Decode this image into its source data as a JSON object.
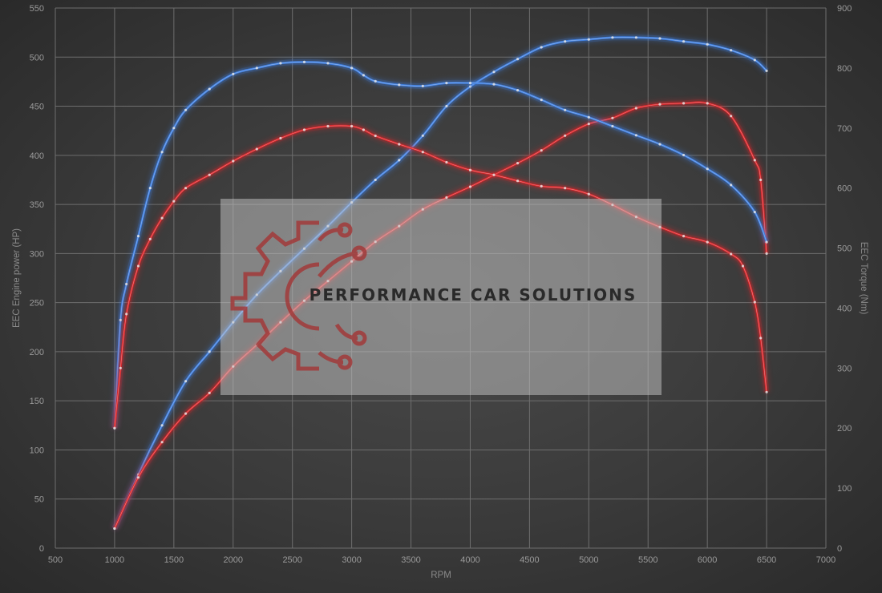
{
  "chart_data": {
    "type": "line",
    "xlabel": "RPM",
    "ylabel": "EEC Engine power (HP)",
    "y2label": "EEC Torque (Nm)",
    "xlim": [
      500,
      7000
    ],
    "ylim": [
      0,
      550
    ],
    "y2lim": [
      0,
      900
    ],
    "xticks": [
      "500",
      "1000",
      "1500",
      "2000",
      "2500",
      "3000",
      "3500",
      "4000",
      "4500",
      "5000",
      "5500",
      "6000",
      "6500",
      "7000"
    ],
    "yticks": [
      "0",
      "50",
      "100",
      "150",
      "200",
      "250",
      "300",
      "350",
      "400",
      "450",
      "500",
      "550"
    ],
    "y2ticks": [
      "0",
      "100",
      "200",
      "300",
      "400",
      "500",
      "600",
      "700",
      "800",
      "900"
    ],
    "grid": true,
    "series": [
      {
        "color": "#3f7fe0",
        "axis": "left",
        "points": [
          [
            1000,
            20
          ],
          [
            1200,
            75
          ],
          [
            1400,
            125
          ],
          [
            1600,
            170
          ],
          [
            1800,
            200
          ],
          [
            2000,
            230
          ],
          [
            2200,
            258
          ],
          [
            2400,
            282
          ],
          [
            2600,
            305
          ],
          [
            2800,
            328
          ],
          [
            3000,
            352
          ],
          [
            3200,
            375
          ],
          [
            3400,
            395
          ],
          [
            3600,
            420
          ],
          [
            3800,
            450
          ],
          [
            4000,
            470
          ],
          [
            4200,
            485
          ],
          [
            4400,
            498
          ],
          [
            4600,
            510
          ],
          [
            4800,
            516
          ],
          [
            5000,
            518
          ],
          [
            5200,
            520
          ],
          [
            5400,
            520
          ],
          [
            5600,
            519
          ],
          [
            5800,
            516
          ],
          [
            6000,
            513
          ],
          [
            6200,
            507
          ],
          [
            6400,
            497
          ],
          [
            6500,
            486
          ]
        ]
      },
      {
        "color": "#d8262a",
        "axis": "left",
        "points": [
          [
            1000,
            20
          ],
          [
            1200,
            72
          ],
          [
            1400,
            108
          ],
          [
            1600,
            137
          ],
          [
            1800,
            158
          ],
          [
            2000,
            185
          ],
          [
            2200,
            207
          ],
          [
            2400,
            230
          ],
          [
            2600,
            252
          ],
          [
            2800,
            272
          ],
          [
            3000,
            292
          ],
          [
            3200,
            312
          ],
          [
            3400,
            328
          ],
          [
            3600,
            345
          ],
          [
            3800,
            357
          ],
          [
            4000,
            368
          ],
          [
            4200,
            380
          ],
          [
            4400,
            392
          ],
          [
            4600,
            405
          ],
          [
            4800,
            420
          ],
          [
            5000,
            432
          ],
          [
            5200,
            438
          ],
          [
            5400,
            448
          ],
          [
            5600,
            452
          ],
          [
            5800,
            453
          ],
          [
            6000,
            453
          ],
          [
            6200,
            440
          ],
          [
            6400,
            395
          ],
          [
            6450,
            375
          ],
          [
            6500,
            300
          ]
        ]
      },
      {
        "color": "#3f7fe0",
        "axis": "right",
        "points": [
          [
            1000,
            200
          ],
          [
            1050,
            380
          ],
          [
            1100,
            440
          ],
          [
            1200,
            520
          ],
          [
            1300,
            600
          ],
          [
            1400,
            660
          ],
          [
            1500,
            700
          ],
          [
            1600,
            730
          ],
          [
            1800,
            765
          ],
          [
            2000,
            790
          ],
          [
            2200,
            800
          ],
          [
            2400,
            808
          ],
          [
            2600,
            810
          ],
          [
            2800,
            808
          ],
          [
            3000,
            800
          ],
          [
            3100,
            788
          ],
          [
            3200,
            778
          ],
          [
            3400,
            772
          ],
          [
            3600,
            770
          ],
          [
            3800,
            775
          ],
          [
            4000,
            775
          ],
          [
            4200,
            773
          ],
          [
            4400,
            763
          ],
          [
            4600,
            747
          ],
          [
            4800,
            730
          ],
          [
            5000,
            718
          ],
          [
            5200,
            703
          ],
          [
            5400,
            688
          ],
          [
            5600,
            673
          ],
          [
            5800,
            655
          ],
          [
            6000,
            632
          ],
          [
            6200,
            605
          ],
          [
            6400,
            560
          ],
          [
            6500,
            510
          ]
        ]
      },
      {
        "color": "#d8262a",
        "axis": "right",
        "points": [
          [
            1000,
            200
          ],
          [
            1050,
            300
          ],
          [
            1100,
            390
          ],
          [
            1200,
            470
          ],
          [
            1300,
            515
          ],
          [
            1400,
            550
          ],
          [
            1500,
            578
          ],
          [
            1600,
            600
          ],
          [
            1800,
            622
          ],
          [
            2000,
            645
          ],
          [
            2200,
            665
          ],
          [
            2400,
            683
          ],
          [
            2600,
            697
          ],
          [
            2800,
            703
          ],
          [
            3000,
            703
          ],
          [
            3100,
            697
          ],
          [
            3200,
            687
          ],
          [
            3400,
            673
          ],
          [
            3600,
            660
          ],
          [
            3800,
            643
          ],
          [
            4000,
            630
          ],
          [
            4200,
            622
          ],
          [
            4400,
            612
          ],
          [
            4600,
            603
          ],
          [
            4800,
            600
          ],
          [
            5000,
            590
          ],
          [
            5200,
            572
          ],
          [
            5400,
            552
          ],
          [
            5600,
            535
          ],
          [
            5800,
            520
          ],
          [
            6000,
            510
          ],
          [
            6200,
            490
          ],
          [
            6300,
            470
          ],
          [
            6400,
            410
          ],
          [
            6450,
            350
          ],
          [
            6500,
            260
          ]
        ]
      }
    ]
  },
  "watermark": {
    "text": "PERFORMANCE CAR SOLUTIONS",
    "logo": "gear-circuit-logo",
    "color": "#a23a3a"
  }
}
